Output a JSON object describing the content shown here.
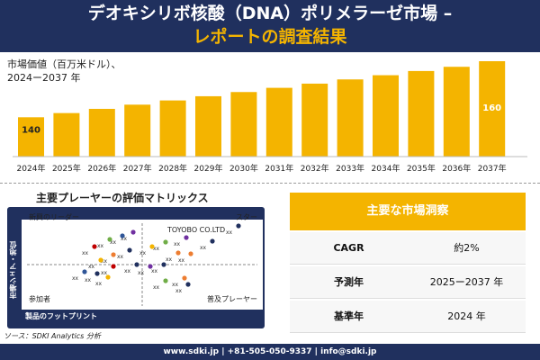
{
  "header": {
    "title_line1": "デオキシリボ核酸（DNA）ポリメラーゼ市場 –",
    "title_line2": "レポートの調査結果"
  },
  "bar_panel": {
    "label_line1": "市場価値（百万米ドル）、",
    "label_line2": "2024ー2037 年"
  },
  "chart_data": {
    "type": "bar",
    "categories": [
      "2024年",
      "2025年",
      "2026年",
      "2027年",
      "2028年",
      "2029年",
      "2030年",
      "2031年",
      "2032年",
      "2033年",
      "2034年",
      "2035年",
      "2036年",
      "2037年"
    ],
    "values": [
      140,
      141.5,
      143,
      144.5,
      146,
      147.5,
      149,
      150.5,
      152,
      153.5,
      155,
      156.5,
      158,
      160
    ],
    "data_labels": {
      "0": "140",
      "13": "160"
    },
    "colors": {
      "bar": "#f4b400",
      "first_bar_label": "#222222",
      "last_bar_label": "#ffffff"
    }
  },
  "matrix": {
    "title": "主要プレーヤーの評価マトリックス",
    "x_axis_label": "製品のフットプリント",
    "y_axis_label": "市場シェア・地位",
    "quadrants": {
      "top_left": "新興のリーダー",
      "top_right": "スター",
      "bottom_left": "参加者",
      "bottom_right": "普及プレーヤー"
    },
    "highlight_company": "TOYOBO CO.LTD",
    "point_label": "xx"
  },
  "insights": {
    "header": "主要な市場洞察",
    "rows": [
      {
        "key": "CAGR",
        "value": "約2%"
      },
      {
        "key": "予測年",
        "value": "2025ー2037 年"
      },
      {
        "key": "基準年",
        "value": "2024 年"
      }
    ]
  },
  "source": "ソース：SDKI Analytics 分析",
  "footer": "www.sdki.jp | +81-505-050-9337 | info@sdki.jp"
}
